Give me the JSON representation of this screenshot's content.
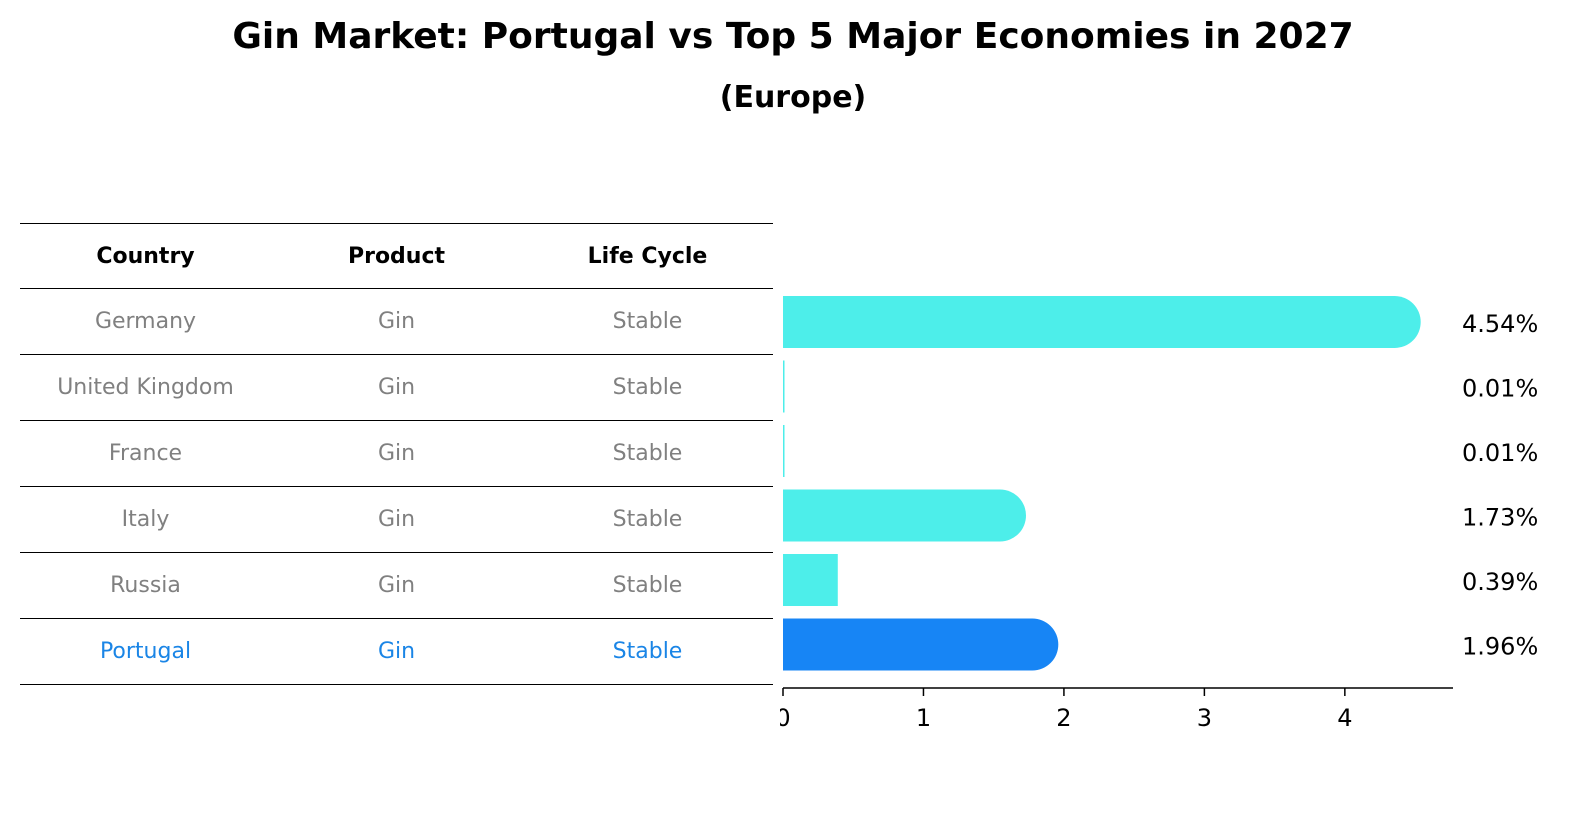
{
  "title": "Gin Market: Portugal vs Top 5 Major Economies in 2027",
  "subtitle": "(Europe)",
  "table": {
    "headers": [
      "Country",
      "Product",
      "Life Cycle"
    ],
    "rows": [
      {
        "country": "Germany",
        "product": "Gin",
        "life_cycle": "Stable"
      },
      {
        "country": "United Kingdom",
        "product": "Gin",
        "life_cycle": "Stable"
      },
      {
        "country": "France",
        "product": "Gin",
        "life_cycle": "Stable"
      },
      {
        "country": "Italy",
        "product": "Gin",
        "life_cycle": "Stable"
      },
      {
        "country": "Russia",
        "product": "Gin",
        "life_cycle": "Stable"
      },
      {
        "country": "Portugal",
        "product": "Gin",
        "life_cycle": "Stable"
      }
    ]
  },
  "chart_data": {
    "type": "bar",
    "orientation": "horizontal",
    "categories": [
      "Germany",
      "United Kingdom",
      "France",
      "Italy",
      "Russia",
      "Portugal"
    ],
    "values": [
      4.54,
      0.01,
      0.01,
      1.73,
      0.39,
      1.96
    ],
    "value_labels": [
      "4.54%",
      "0.01%",
      "0.01%",
      "1.73%",
      "0.39%",
      "1.96%"
    ],
    "highlight": "Portugal",
    "xlim": [
      0,
      4.77
    ],
    "xticks": [
      0,
      1,
      2,
      3,
      4
    ],
    "xlabel": "",
    "ylabel": "",
    "grid": false,
    "colors": {
      "default": "#4deeea",
      "highlight": "#1785f5",
      "axis": "#000000"
    }
  }
}
